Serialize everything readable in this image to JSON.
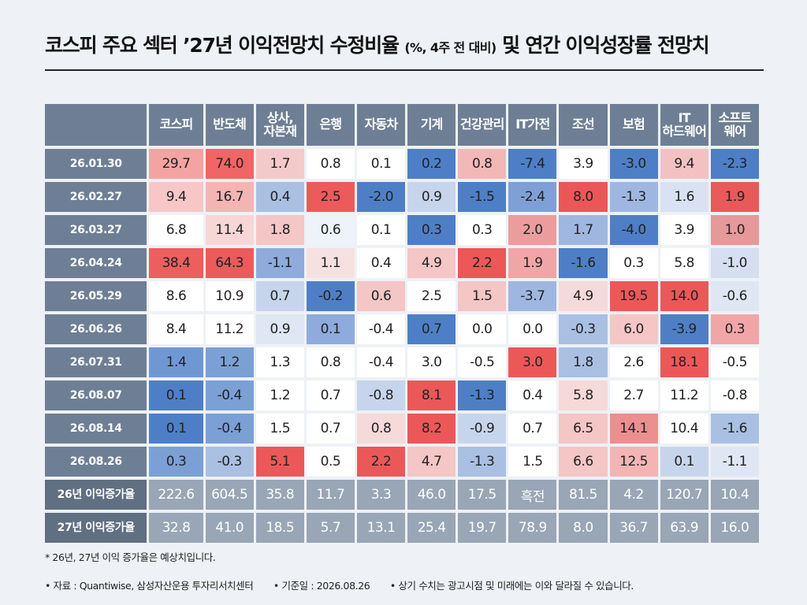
{
  "title": {
    "main_pre": "코스피 주요 섹터 ’27년 이익전망치 수정비율",
    "sub": "(%, 4주 전 대비)",
    "main_post": "및 연간 이익성장률 전망치"
  },
  "columns": [
    [
      "코스피"
    ],
    [
      "반도체"
    ],
    [
      "상사,",
      "자본재"
    ],
    [
      "은행"
    ],
    [
      "자동차"
    ],
    [
      "기계"
    ],
    [
      "건강관리"
    ],
    [
      "IT가전"
    ],
    [
      "조선"
    ],
    [
      "보험"
    ],
    [
      "IT",
      "하드웨어"
    ],
    [
      "소프트",
      "웨어"
    ]
  ],
  "rows": [
    {
      "date": "26.01.30",
      "values": [
        "29.7",
        "74.0",
        "1.7",
        "0.8",
        "0.1",
        "0.2",
        "0.8",
        "-7.4",
        "3.9",
        "-3.0",
        "9.4",
        "-2.3"
      ]
    },
    {
      "date": "26.02.27",
      "values": [
        "9.4",
        "16.7",
        "0.4",
        "2.5",
        "-2.0",
        "0.9",
        "-1.5",
        "-2.4",
        "8.0",
        "-1.3",
        "1.6",
        "1.9"
      ]
    },
    {
      "date": "26.03.27",
      "values": [
        "6.8",
        "11.4",
        "1.8",
        "0.6",
        "0.1",
        "0.3",
        "0.3",
        "2.0",
        "1.7",
        "-4.0",
        "3.9",
        "1.0"
      ]
    },
    {
      "date": "26.04.24",
      "values": [
        "38.4",
        "64.3",
        "-1.1",
        "1.1",
        "0.4",
        "4.9",
        "2.2",
        "1.9",
        "-1.6",
        "0.3",
        "5.8",
        "-1.0"
      ]
    },
    {
      "date": "26.05.29",
      "values": [
        "8.6",
        "10.9",
        "0.7",
        "-0.2",
        "0.6",
        "2.5",
        "1.5",
        "-3.7",
        "4.9",
        "19.5",
        "14.0",
        "-0.6"
      ]
    },
    {
      "date": "26.06.26",
      "values": [
        "8.4",
        "11.2",
        "0.9",
        "0.1",
        "-0.4",
        "0.7",
        "0.0",
        "0.0",
        "-0.3",
        "6.0",
        "-3.9",
        "0.3"
      ]
    },
    {
      "date": "26.07.31",
      "values": [
        "1.4",
        "1.2",
        "1.3",
        "0.8",
        "-0.4",
        "3.0",
        "-0.5",
        "3.0",
        "1.8",
        "2.6",
        "18.1",
        "-0.5"
      ]
    },
    {
      "date": "26.08.07",
      "values": [
        "0.1",
        "-0.4",
        "1.2",
        "0.7",
        "-0.8",
        "8.1",
        "-1.3",
        "0.4",
        "5.8",
        "2.7",
        "11.2",
        "-0.8"
      ]
    },
    {
      "date": "26.08.14",
      "values": [
        "0.1",
        "-0.4",
        "1.5",
        "0.7",
        "0.8",
        "8.2",
        "-0.9",
        "0.7",
        "6.5",
        "14.1",
        "10.4",
        "-1.6"
      ]
    },
    {
      "date": "26.08.26",
      "values": [
        "0.3",
        "-0.3",
        "5.1",
        "0.5",
        "2.2",
        "4.7",
        "-1.3",
        "1.5",
        "6.6",
        "12.5",
        "0.1",
        "-1.1"
      ]
    }
  ],
  "cell_colors": [
    [
      "#f4a3a3",
      "#f06565",
      "#f4c9c9",
      "#ffffff",
      "#ffffff",
      "#4e7fc6",
      "#f3b7b7",
      "#4e7fc6",
      "#ffffff",
      "#4e7fc6",
      "#f3c1c1",
      "#4e7fc6"
    ],
    [
      "#f7c7c7",
      "#f4b4b4",
      "#a9c0e3",
      "#ec5b5b",
      "#4e7fc6",
      "#c7d5ec",
      "#4e7fc6",
      "#7fa0d6",
      "#ea5757",
      "#9fb7e0",
      "#d8e2f2",
      "#e85a5a"
    ],
    [
      "#ffffff",
      "#f8d6d6",
      "#f4c6c6",
      "#eef2f9",
      "#ffffff",
      "#4e7fc6",
      "#ffffff",
      "#ec9c9c",
      "#9fb7e0",
      "#4e7fc6",
      "#ffffff",
      "#e59999"
    ],
    [
      "#ed5e5e",
      "#ec5b5b",
      "#8eabdc",
      "#f6e1e1",
      "#ffffff",
      "#f4c6c6",
      "#ec5858",
      "#f0a6a6",
      "#4e7fc6",
      "#ffffff",
      "#ffffff",
      "#d5dff1"
    ],
    [
      "#ffffff",
      "#ffffff",
      "#c7d5ec",
      "#4e7fc6",
      "#f4c6c6",
      "#ffffff",
      "#f4c6c6",
      "#9fb7e0",
      "#f6d9d9",
      "#ec5858",
      "#ec5858",
      "#dfe7f4"
    ],
    [
      "#ffffff",
      "#ffffff",
      "#dfe7f4",
      "#8eabdc",
      "#ffffff",
      "#4e7fc6",
      "#ffffff",
      "#ffffff",
      "#a9c0e3",
      "#f4c6c6",
      "#4e7fc6",
      "#f0a6a6"
    ],
    [
      "#6f98d3",
      "#7aa0d6",
      "#ffffff",
      "#ffffff",
      "#ffffff",
      "#ffffff",
      "#ffffff",
      "#ec5858",
      "#a9c0e3",
      "#ffffff",
      "#ec5858",
      "#ffffff"
    ],
    [
      "#4e7fc6",
      "#7aa0d6",
      "#ffffff",
      "#ffffff",
      "#c7d5ec",
      "#ec5858",
      "#4e7fc6",
      "#ffffff",
      "#f6d9d9",
      "#ffffff",
      "#ffffff",
      "#ffffff"
    ],
    [
      "#4e7fc6",
      "#7aa0d6",
      "#ffffff",
      "#ffffff",
      "#f6d9d9",
      "#ec5858",
      "#c7d5ec",
      "#ffffff",
      "#f4c6c6",
      "#ec8f8f",
      "#ffffff",
      "#a9c0e3"
    ],
    [
      "#7aa0d6",
      "#a9c0e3",
      "#ec5858",
      "#ffffff",
      "#ec5858",
      "#f4c6c6",
      "#a9c0e3",
      "#ffffff",
      "#f4c6c6",
      "#f4b4b4",
      "#c7d5ec",
      "#dfe7f4"
    ]
  ],
  "summary": [
    {
      "label": "26년 이익증가율",
      "values": [
        "222.6",
        "604.5",
        "35.8",
        "11.7",
        "3.3",
        "46.0",
        "17.5",
        "흑전",
        "81.5",
        "4.2",
        "120.7",
        "10.4"
      ]
    },
    {
      "label": "27년 이익증가율",
      "values": [
        "32.8",
        "41.0",
        "18.5",
        "5.7",
        "13.1",
        "25.4",
        "19.7",
        "78.9",
        "8.0",
        "36.7",
        "63.9",
        "16.0"
      ]
    }
  ],
  "footnote": "* 26년, 27년 이익 증가율은 예상치입니다.",
  "source": {
    "s1": "• 자료 : Quantiwise, 삼성자산운용 투자리서치센터",
    "s2": "• 기준일 : 2026.08.26",
    "s3": "• 상기 수치는 광고시점 및 미래에는 이와 달라질 수 있습니다."
  }
}
